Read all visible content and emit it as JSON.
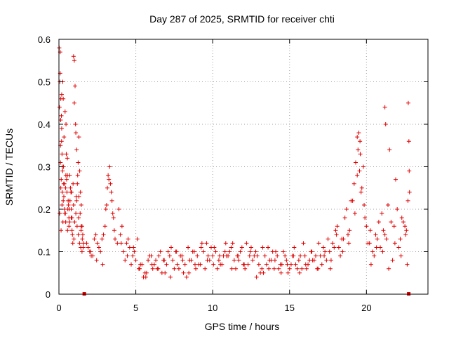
{
  "chart_data": {
    "type": "scatter",
    "title": "Day 287 of 2025, SRMTID for receiver chti",
    "xlabel": "GPS time / hours",
    "ylabel": "SRMTID / TECUs",
    "xlim": [
      0,
      24
    ],
    "ylim": [
      0,
      0.6
    ],
    "xticks": [
      "0",
      "5",
      "10",
      "15",
      "20"
    ],
    "yticks": [
      "0",
      "0.1",
      "0.2",
      "0.3",
      "0.4",
      "0.5",
      "0.6"
    ],
    "grid": true,
    "marker": "+",
    "color": "#e00000",
    "gap_markers_x": [
      1.65,
      22.75
    ],
    "series": [
      {
        "name": "SRMTID",
        "x": [
          0.02,
          0.04,
          0.06,
          0.08,
          0.1,
          0.12,
          0.14,
          0.16,
          0.18,
          0.2,
          0.22,
          0.25,
          0.28,
          0.3,
          0.33,
          0.36,
          0.4,
          0.43,
          0.46,
          0.5,
          0.55,
          0.6,
          0.65,
          0.7,
          0.75,
          0.8,
          0.85,
          0.9,
          0.95,
          1.0,
          1.05,
          1.1,
          1.15,
          1.2,
          1.25,
          1.3,
          1.35,
          1.4,
          1.45,
          1.5,
          1.55,
          1.6,
          0.08,
          0.12,
          0.18,
          0.22,
          0.28,
          0.35,
          0.42,
          0.48,
          0.55,
          0.62,
          0.7,
          0.78,
          0.85,
          0.92,
          1.0,
          1.08,
          1.15,
          1.22,
          1.3,
          1.38,
          1.45,
          1.52,
          0.1,
          0.15,
          0.2,
          0.26,
          0.32,
          0.38,
          0.45,
          0.52,
          0.58,
          0.65,
          0.72,
          0.8,
          0.88,
          0.95,
          1.02,
          1.1,
          1.18,
          1.26,
          1.34,
          1.42,
          1.5,
          0.05,
          0.11,
          0.17,
          0.24,
          0.31,
          0.44,
          0.56,
          0.68,
          0.82,
          0.97,
          1.12,
          1.28,
          1.44,
          1.58,
          1.8,
          2.0,
          2.2,
          2.4,
          2.6,
          2.8,
          3.0,
          3.1,
          3.2,
          3.3,
          3.4,
          3.5,
          3.6,
          3.8,
          4.0,
          4.2,
          4.4,
          4.6,
          4.8,
          5.0,
          5.2,
          5.4,
          5.6,
          5.8,
          6.0,
          6.2,
          6.4,
          6.6,
          6.8,
          7.0,
          7.2,
          7.4,
          7.6,
          7.8,
          8.0,
          8.2,
          8.4,
          8.6,
          8.8,
          9.0,
          9.2,
          9.4,
          9.6,
          9.8,
          10.0,
          10.2,
          10.4,
          10.6,
          10.8,
          11.0,
          11.2,
          11.4,
          11.6,
          11.8,
          12.0,
          12.2,
          12.4,
          12.6,
          12.8,
          13.0,
          13.2,
          13.4,
          13.6,
          13.8,
          14.0,
          14.2,
          14.4,
          14.6,
          14.8,
          15.0,
          15.2,
          15.4,
          15.6,
          15.8,
          16.0,
          16.2,
          16.4,
          16.6,
          16.8,
          17.0,
          17.2,
          17.4,
          17.6,
          17.8,
          18.0,
          18.2,
          18.4,
          18.6,
          18.8,
          19.0,
          19.2,
          19.4,
          19.5,
          19.6,
          19.8,
          20.0,
          20.2,
          20.4,
          20.6,
          20.8,
          21.0,
          21.2,
          21.4,
          21.6,
          21.8,
          22.0,
          22.2,
          22.4,
          22.6,
          22.8,
          1.9,
          2.3,
          2.7,
          3.25,
          3.35,
          3.45,
          4.1,
          4.5,
          4.9,
          5.3,
          5.7,
          6.1,
          6.5,
          6.9,
          7.3,
          7.7,
          8.1,
          8.5,
          8.9,
          9.3,
          9.7,
          10.1,
          10.5,
          10.9,
          11.3,
          11.7,
          12.1,
          12.5,
          12.9,
          13.3,
          13.7,
          14.1,
          14.5,
          14.9,
          15.3,
          15.7,
          16.1,
          16.5,
          16.9,
          17.3,
          17.7,
          18.1,
          18.5,
          18.9,
          19.3,
          19.45,
          19.55,
          19.7,
          20.1,
          20.5,
          20.9,
          21.3,
          21.7,
          22.1,
          22.5,
          22.7,
          2.1,
          2.5,
          2.9,
          3.15,
          3.55,
          3.9,
          4.3,
          4.7,
          5.1,
          5.5,
          5.9,
          6.3,
          6.7,
          7.1,
          7.5,
          7.9,
          8.3,
          8.7,
          9.1,
          9.5,
          9.9,
          10.3,
          10.7,
          11.1,
          11.5,
          11.9,
          12.3,
          12.7,
          13.1,
          13.5,
          13.9,
          14.3,
          14.7,
          15.1,
          15.5,
          15.9,
          16.3,
          16.7,
          17.1,
          17.5,
          17.9,
          18.3,
          18.7,
          19.1,
          19.4,
          19.65,
          19.9,
          20.3,
          20.7,
          21.1,
          21.2,
          21.25,
          21.5,
          21.9,
          22.3,
          22.55,
          22.72,
          22.76,
          22.78,
          2.05,
          2.45,
          2.85,
          3.05,
          3.65,
          4.05,
          4.45,
          4.85,
          5.25,
          5.65,
          6.05,
          6.45,
          6.85,
          7.25,
          7.65,
          8.05,
          8.45,
          8.85,
          9.25,
          9.65,
          10.05,
          10.45,
          10.85,
          11.25,
          11.65,
          12.05,
          12.45,
          12.85,
          13.25,
          13.65,
          14.05,
          14.45,
          14.85,
          15.25,
          15.65,
          16.05,
          16.45,
          16.85,
          17.25,
          17.65,
          18.05,
          18.45,
          18.85,
          19.25,
          19.58,
          19.85,
          20.25,
          20.65,
          21.05,
          21.45,
          21.85,
          22.25,
          22.65
        ],
        "y": [
          0.58,
          0.44,
          0.5,
          0.57,
          0.35,
          0.25,
          0.15,
          0.42,
          0.47,
          0.33,
          0.24,
          0.5,
          0.46,
          0.3,
          0.37,
          0.2,
          0.43,
          0.25,
          0.4,
          0.27,
          0.32,
          0.22,
          0.18,
          0.28,
          0.25,
          0.2,
          0.15,
          0.12,
          0.56,
          0.55,
          0.49,
          0.38,
          0.22,
          0.26,
          0.31,
          0.37,
          0.29,
          0.24,
          0.21,
          0.16,
          0.14,
          0.12,
          0.52,
          0.46,
          0.39,
          0.3,
          0.22,
          0.26,
          0.19,
          0.33,
          0.28,
          0.21,
          0.17,
          0.24,
          0.18,
          0.26,
          0.45,
          0.4,
          0.34,
          0.28,
          0.23,
          0.19,
          0.16,
          0.13,
          0.31,
          0.27,
          0.21,
          0.17,
          0.23,
          0.19,
          0.28,
          0.24,
          0.2,
          0.16,
          0.22,
          0.18,
          0.14,
          0.21,
          0.17,
          0.19,
          0.16,
          0.14,
          0.12,
          0.11,
          0.1,
          0.19,
          0.41,
          0.36,
          0.29,
          0.26,
          0.17,
          0.15,
          0.2,
          0.24,
          0.13,
          0.23,
          0.18,
          0.15,
          0.11,
          0.12,
          0.1,
          0.09,
          0.14,
          0.11,
          0.13,
          0.16,
          0.21,
          0.28,
          0.3,
          0.24,
          0.19,
          0.15,
          0.12,
          0.14,
          0.1,
          0.12,
          0.11,
          0.09,
          0.08,
          0.06,
          0.07,
          0.05,
          0.08,
          0.09,
          0.07,
          0.06,
          0.1,
          0.08,
          0.07,
          0.09,
          0.08,
          0.1,
          0.06,
          0.09,
          0.07,
          0.11,
          0.08,
          0.1,
          0.09,
          0.07,
          0.1,
          0.12,
          0.08,
          0.09,
          0.1,
          0.08,
          0.07,
          0.1,
          0.09,
          0.11,
          0.08,
          0.09,
          0.1,
          0.07,
          0.12,
          0.09,
          0.08,
          0.1,
          0.07,
          0.06,
          0.09,
          0.11,
          0.08,
          0.06,
          0.09,
          0.07,
          0.1,
          0.08,
          0.06,
          0.09,
          0.07,
          0.08,
          0.06,
          0.09,
          0.07,
          0.1,
          0.08,
          0.06,
          0.09,
          0.11,
          0.08,
          0.1,
          0.12,
          0.15,
          0.11,
          0.13,
          0.18,
          0.14,
          0.22,
          0.26,
          0.37,
          0.38,
          0.33,
          0.3,
          0.16,
          0.12,
          0.1,
          0.14,
          0.17,
          0.19,
          0.14,
          0.21,
          0.17,
          0.16,
          0.2,
          0.13,
          0.17,
          0.15,
          0.24,
          0.11,
          0.13,
          0.1,
          0.27,
          0.26,
          0.22,
          0.16,
          0.13,
          0.1,
          0.07,
          0.05,
          0.06,
          0.09,
          0.05,
          0.11,
          0.07,
          0.05,
          0.08,
          0.06,
          0.12,
          0.09,
          0.11,
          0.07,
          0.09,
          0.12,
          0.08,
          0.06,
          0.11,
          0.09,
          0.05,
          0.08,
          0.1,
          0.07,
          0.05,
          0.11,
          0.09,
          0.06,
          0.08,
          0.12,
          0.1,
          0.08,
          0.16,
          0.13,
          0.15,
          0.31,
          0.34,
          0.29,
          0.25,
          0.12,
          0.09,
          0.11,
          0.13,
          0.08,
          0.11,
          0.16,
          0.22,
          0.09,
          0.12,
          0.14,
          0.25,
          0.18,
          0.2,
          0.08,
          0.07,
          0.13,
          0.04,
          0.09,
          0.08,
          0.05,
          0.1,
          0.06,
          0.09,
          0.04,
          0.1,
          0.07,
          0.06,
          0.11,
          0.06,
          0.09,
          0.1,
          0.06,
          0.11,
          0.07,
          0.09,
          0.05,
          0.07,
          0.1,
          0.06,
          0.09,
          0.07,
          0.06,
          0.12,
          0.08,
          0.09,
          0.07,
          0.13,
          0.11,
          0.09,
          0.2,
          0.22,
          0.28,
          0.24,
          0.18,
          0.07,
          0.13,
          0.15,
          0.44,
          0.4,
          0.34,
          0.27,
          0.18,
          0.14,
          0.45,
          0.36,
          0.29,
          0.1,
          0.08,
          0.07,
          0.2,
          0.13,
          0.12,
          0.09,
          0.11,
          0.06,
          0.04,
          0.07,
          0.06,
          0.08,
          0.04,
          0.1,
          0.08,
          0.05,
          0.07,
          0.11,
          0.08,
          0.07,
          0.09,
          0.12,
          0.06,
          0.09,
          0.07,
          0.1,
          0.04,
          0.11,
          0.06,
          0.08,
          0.05,
          0.07,
          0.09,
          0.05,
          0.07,
          0.1,
          0.06,
          0.09,
          0.06,
          0.14,
          0.1,
          0.12,
          0.19,
          0.36,
          0.21,
          0.15,
          0.11,
          0.1,
          0.06,
          0.12,
          0.09,
          0.07
        ]
      }
    ]
  }
}
